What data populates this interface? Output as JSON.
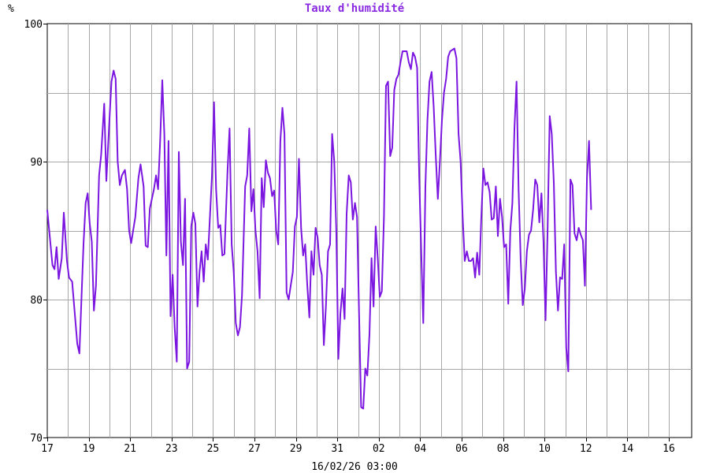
{
  "chart_data": {
    "type": "line",
    "title": "Taux d'humidité",
    "ylabel": "%",
    "xlabel": "16/02/26 03:00",
    "ylim": [
      70,
      100
    ],
    "yticks": [
      "70",
      "80",
      "90",
      "100"
    ],
    "xticks": [
      "17",
      "19",
      "21",
      "23",
      "25",
      "27",
      "29",
      "31",
      "02",
      "04",
      "06",
      "08",
      "10",
      "12",
      "14",
      "16"
    ],
    "xlim": [
      0,
      30.5
    ],
    "grid": true,
    "line_color": "#7b16e0",
    "series": [
      {
        "values": [
          [
            0.0,
            86.5
          ],
          [
            0.25,
            82.5
          ],
          [
            0.35,
            82.2
          ],
          [
            0.45,
            83.8
          ],
          [
            0.55,
            81.5
          ],
          [
            0.7,
            83.0
          ],
          [
            0.8,
            86.3
          ],
          [
            0.95,
            82.8
          ],
          [
            1.05,
            81.6
          ],
          [
            1.2,
            81.3
          ],
          [
            1.3,
            79.5
          ],
          [
            1.45,
            76.8
          ],
          [
            1.55,
            76.1
          ],
          [
            1.75,
            84.0
          ],
          [
            1.85,
            87.0
          ],
          [
            1.95,
            87.7
          ],
          [
            2.05,
            85.5
          ],
          [
            2.15,
            84.2
          ],
          [
            2.25,
            79.2
          ],
          [
            2.35,
            81.0
          ],
          [
            2.5,
            89.0
          ],
          [
            2.6,
            90.5
          ],
          [
            2.75,
            94.2
          ],
          [
            2.85,
            88.6
          ],
          [
            3.0,
            93.0
          ],
          [
            3.1,
            95.8
          ],
          [
            3.2,
            96.6
          ],
          [
            3.3,
            96.0
          ],
          [
            3.4,
            90.0
          ],
          [
            3.5,
            88.3
          ],
          [
            3.6,
            89.0
          ],
          [
            3.75,
            89.4
          ],
          [
            3.85,
            88.0
          ],
          [
            3.95,
            85.0
          ],
          [
            4.05,
            84.1
          ],
          [
            4.25,
            86.0
          ],
          [
            4.4,
            88.8
          ],
          [
            4.5,
            89.8
          ],
          [
            4.65,
            88.2
          ],
          [
            4.75,
            83.9
          ],
          [
            4.85,
            83.8
          ],
          [
            4.95,
            86.6
          ],
          [
            5.05,
            87.3
          ],
          [
            5.15,
            88.0
          ],
          [
            5.25,
            89.0
          ],
          [
            5.35,
            88.0
          ],
          [
            5.45,
            91.5
          ],
          [
            5.55,
            95.9
          ],
          [
            5.65,
            92.0
          ],
          [
            5.75,
            83.2
          ],
          [
            5.85,
            91.5
          ],
          [
            5.95,
            78.8
          ],
          [
            6.05,
            81.8
          ],
          [
            6.15,
            78.0
          ],
          [
            6.25,
            75.5
          ],
          [
            6.35,
            90.7
          ],
          [
            6.45,
            84.2
          ],
          [
            6.55,
            82.5
          ],
          [
            6.65,
            87.3
          ],
          [
            6.75,
            75.0
          ],
          [
            6.85,
            75.5
          ],
          [
            6.95,
            85.3
          ],
          [
            7.05,
            86.3
          ],
          [
            7.15,
            85.5
          ],
          [
            7.25,
            79.5
          ],
          [
            7.35,
            82.0
          ],
          [
            7.45,
            83.5
          ],
          [
            7.55,
            81.3
          ],
          [
            7.65,
            84.0
          ],
          [
            7.75,
            82.9
          ],
          [
            7.95,
            89.0
          ],
          [
            8.05,
            94.3
          ],
          [
            8.15,
            88.0
          ],
          [
            8.25,
            85.2
          ],
          [
            8.35,
            85.4
          ],
          [
            8.45,
            83.2
          ],
          [
            8.55,
            83.3
          ],
          [
            8.7,
            89.3
          ],
          [
            8.8,
            92.4
          ],
          [
            8.9,
            84.0
          ],
          [
            9.0,
            82.0
          ],
          [
            9.1,
            78.3
          ],
          [
            9.2,
            77.4
          ],
          [
            9.3,
            78.0
          ],
          [
            9.4,
            80.3
          ],
          [
            9.55,
            88.2
          ],
          [
            9.65,
            89.0
          ],
          [
            9.75,
            92.4
          ],
          [
            9.85,
            86.4
          ],
          [
            9.95,
            88.0
          ],
          [
            10.05,
            85.0
          ],
          [
            10.15,
            83.5
          ],
          [
            10.25,
            80.1
          ],
          [
            10.35,
            88.8
          ],
          [
            10.45,
            86.7
          ],
          [
            10.55,
            90.1
          ],
          [
            10.65,
            89.2
          ],
          [
            10.75,
            88.8
          ],
          [
            10.85,
            87.5
          ],
          [
            10.95,
            87.9
          ],
          [
            11.05,
            85.0
          ],
          [
            11.15,
            84.0
          ],
          [
            11.25,
            91.5
          ],
          [
            11.35,
            93.9
          ],
          [
            11.45,
            92.0
          ],
          [
            11.55,
            80.5
          ],
          [
            11.65,
            80.0
          ],
          [
            11.75,
            81.0
          ],
          [
            11.85,
            82.0
          ],
          [
            11.95,
            85.3
          ],
          [
            12.05,
            86.0
          ],
          [
            12.15,
            90.2
          ],
          [
            12.25,
            85.2
          ],
          [
            12.35,
            83.2
          ],
          [
            12.45,
            84.0
          ],
          [
            12.55,
            81.0
          ],
          [
            12.65,
            78.7
          ],
          [
            12.75,
            83.5
          ],
          [
            12.85,
            81.8
          ],
          [
            12.95,
            85.2
          ],
          [
            13.05,
            84.5
          ],
          [
            13.15,
            82.5
          ],
          [
            13.25,
            81.8
          ],
          [
            13.35,
            76.7
          ],
          [
            13.45,
            79.5
          ],
          [
            13.55,
            83.5
          ],
          [
            13.65,
            84.0
          ],
          [
            13.75,
            92.0
          ],
          [
            13.85,
            90.0
          ],
          [
            13.95,
            85.0
          ],
          [
            14.05,
            75.7
          ],
          [
            14.15,
            79.0
          ],
          [
            14.25,
            80.8
          ],
          [
            14.35,
            78.6
          ],
          [
            14.45,
            86.2
          ],
          [
            14.55,
            89.0
          ],
          [
            14.65,
            88.5
          ],
          [
            14.75,
            85.8
          ],
          [
            14.85,
            87.0
          ],
          [
            14.95,
            86.0
          ],
          [
            15.05,
            79.0
          ],
          [
            15.15,
            72.2
          ],
          [
            15.25,
            72.1
          ],
          [
            15.35,
            75.0
          ],
          [
            15.45,
            74.5
          ],
          [
            15.55,
            77.5
          ],
          [
            15.65,
            83.0
          ],
          [
            15.75,
            79.5
          ],
          [
            15.85,
            85.3
          ],
          [
            15.95,
            83.0
          ],
          [
            16.05,
            80.2
          ],
          [
            16.15,
            80.6
          ],
          [
            16.25,
            86.0
          ],
          [
            16.35,
            95.5
          ],
          [
            16.45,
            95.8
          ],
          [
            16.55,
            90.4
          ],
          [
            16.65,
            91.0
          ],
          [
            16.75,
            95.2
          ],
          [
            16.85,
            96.0
          ],
          [
            16.95,
            96.3
          ],
          [
            17.05,
            97.2
          ],
          [
            17.15,
            98.0
          ],
          [
            17.25,
            98.0
          ],
          [
            17.35,
            98.0
          ],
          [
            17.45,
            97.2
          ],
          [
            17.55,
            96.7
          ],
          [
            17.65,
            97.9
          ],
          [
            17.75,
            97.6
          ],
          [
            17.85,
            96.8
          ],
          [
            17.95,
            89.0
          ],
          [
            18.05,
            83.5
          ],
          [
            18.15,
            78.3
          ],
          [
            18.25,
            88.2
          ],
          [
            18.35,
            93.0
          ],
          [
            18.45,
            95.8
          ],
          [
            18.55,
            96.5
          ],
          [
            18.65,
            94.0
          ],
          [
            18.75,
            90.5
          ],
          [
            18.85,
            87.3
          ],
          [
            18.95,
            90.0
          ],
          [
            19.05,
            93.0
          ],
          [
            19.15,
            95.0
          ],
          [
            19.25,
            96.0
          ],
          [
            19.35,
            97.6
          ],
          [
            19.45,
            98.0
          ],
          [
            19.55,
            98.1
          ],
          [
            19.65,
            98.2
          ],
          [
            19.75,
            97.5
          ],
          [
            19.85,
            92.0
          ],
          [
            19.95,
            90.0
          ],
          [
            20.05,
            86.0
          ],
          [
            20.15,
            82.8
          ],
          [
            20.25,
            83.5
          ],
          [
            20.35,
            82.8
          ],
          [
            20.45,
            82.8
          ],
          [
            20.55,
            83.0
          ],
          [
            20.65,
            81.6
          ],
          [
            20.75,
            83.4
          ],
          [
            20.85,
            81.8
          ],
          [
            20.95,
            86.0
          ],
          [
            21.05,
            89.5
          ],
          [
            21.15,
            88.3
          ],
          [
            21.25,
            88.5
          ],
          [
            21.35,
            87.8
          ],
          [
            21.45,
            85.8
          ],
          [
            21.55,
            85.9
          ],
          [
            21.65,
            88.2
          ],
          [
            21.75,
            84.6
          ],
          [
            21.85,
            87.3
          ],
          [
            21.95,
            86.0
          ],
          [
            22.05,
            83.8
          ],
          [
            22.15,
            84.0
          ],
          [
            22.25,
            79.7
          ],
          [
            22.35,
            85.0
          ],
          [
            22.45,
            87.0
          ],
          [
            22.55,
            92.5
          ],
          [
            22.65,
            95.8
          ],
          [
            22.75,
            88.0
          ],
          [
            22.85,
            82.8
          ],
          [
            22.95,
            79.6
          ],
          [
            23.05,
            80.8
          ],
          [
            23.15,
            83.5
          ],
          [
            23.25,
            84.7
          ],
          [
            23.35,
            85.0
          ],
          [
            23.45,
            86.5
          ],
          [
            23.55,
            88.7
          ],
          [
            23.65,
            88.3
          ],
          [
            23.75,
            85.6
          ],
          [
            23.85,
            87.7
          ],
          [
            23.95,
            84.2
          ],
          [
            24.05,
            78.5
          ],
          [
            24.15,
            85.0
          ],
          [
            24.25,
            93.3
          ],
          [
            24.35,
            92.0
          ],
          [
            24.45,
            88.5
          ],
          [
            24.55,
            82.0
          ],
          [
            24.65,
            79.2
          ],
          [
            24.75,
            81.6
          ],
          [
            24.85,
            81.5
          ],
          [
            24.95,
            84.0
          ],
          [
            25.05,
            76.5
          ],
          [
            25.15,
            74.8
          ],
          [
            25.25,
            88.7
          ],
          [
            25.35,
            88.3
          ],
          [
            25.45,
            84.8
          ],
          [
            25.55,
            84.3
          ],
          [
            25.65,
            85.2
          ],
          [
            25.75,
            84.7
          ],
          [
            25.85,
            84.3
          ],
          [
            25.95,
            81.0
          ],
          [
            26.05,
            88.8
          ],
          [
            26.15,
            91.5
          ],
          [
            26.25,
            86.5
          ]
        ]
      }
    ]
  }
}
